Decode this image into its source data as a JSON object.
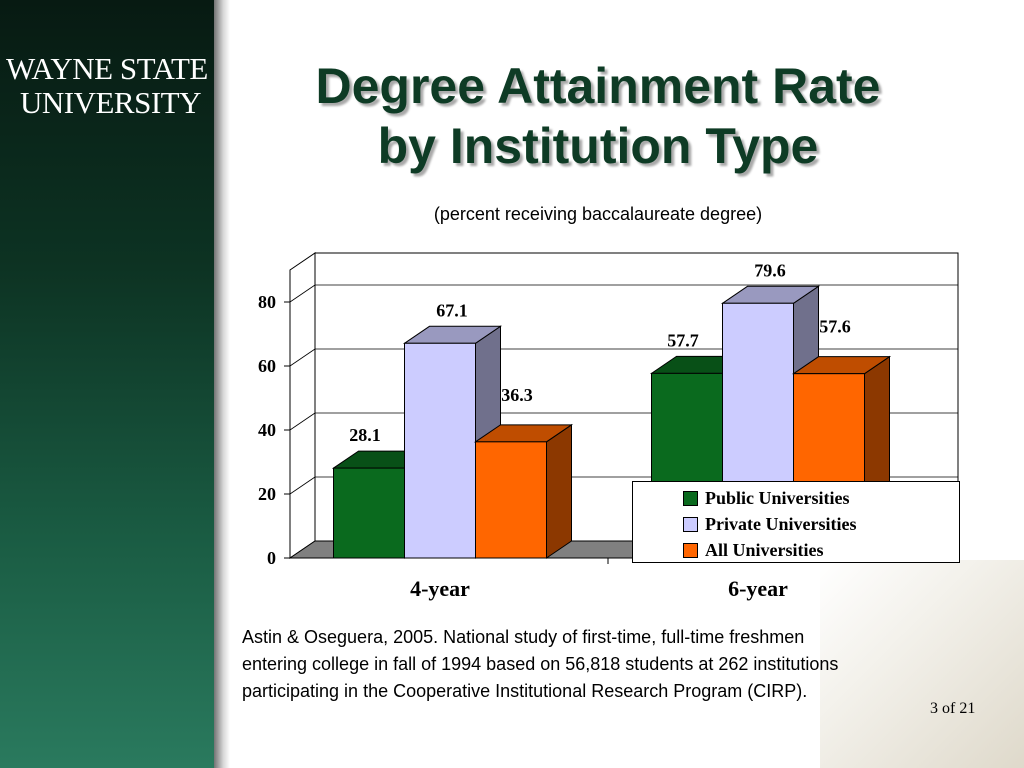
{
  "logo": {
    "line1": "WAYNE STATE",
    "line2": "UNIVERSITY"
  },
  "title": {
    "line1": "Degree Attainment Rate",
    "line2": "by Institution Type"
  },
  "subtitle": "(percent receiving baccalaureate degree)",
  "chart_data": {
    "type": "bar",
    "categories": [
      "4-year",
      "6-year"
    ],
    "series": [
      {
        "name": "Public Universities",
        "values": [
          28.1,
          57.7
        ],
        "color": "#0a6a1e"
      },
      {
        "name": "Private Universities",
        "values": [
          67.1,
          79.6
        ],
        "color": "#ccccff"
      },
      {
        "name": "All Universities",
        "values": [
          36.3,
          57.6
        ],
        "color": "#ff6600"
      }
    ],
    "yticks": [
      0,
      20,
      40,
      60,
      80
    ],
    "ylim": [
      0,
      90
    ],
    "grid": true,
    "three_d": true,
    "legend_position": "bottom-right"
  },
  "source": "Astin & Oseguera, 2005. National study of first-time, full-time freshmen entering college in fall of 1994 based on 56,818 students at 262 institutions participating in the Cooperative Institutional Research Program (CIRP).",
  "page_number": "3 of 21",
  "colors": {
    "sidebar": "#0d3323",
    "title": "#0e3b25",
    "floor": "#808080"
  }
}
